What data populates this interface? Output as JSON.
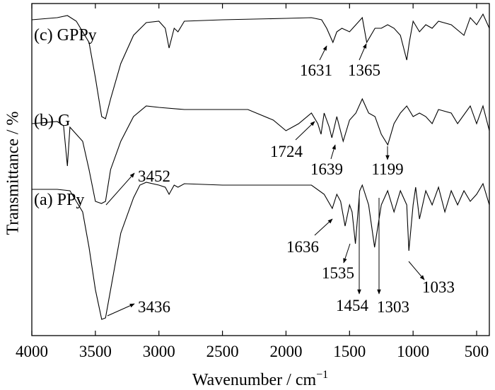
{
  "chart_data": {
    "type": "line",
    "x_label": "Wavenumber / cm",
    "x_label_sup": "−1",
    "y_label": "Transmittance / %",
    "xlim": [
      4000,
      400
    ],
    "xticks": [
      4000,
      3500,
      3000,
      2500,
      2000,
      1500,
      1000,
      500
    ],
    "ylim": [
      0,
      470
    ],
    "color": "#000000",
    "series": [
      {
        "name": "(c) GPPy",
        "x": [
          4000,
          3800,
          3720,
          3650,
          3550,
          3500,
          3450,
          3420,
          3380,
          3300,
          3200,
          3100,
          3000,
          2950,
          2920,
          2880,
          2850,
          2800,
          2500,
          2000,
          1800,
          1720,
          1680,
          1631,
          1600,
          1560,
          1500,
          1450,
          1400,
          1365,
          1300,
          1250,
          1200,
          1150,
          1100,
          1050,
          1030,
          1000,
          950,
          900,
          850,
          800,
          700,
          600,
          550,
          500,
          450,
          400
        ],
        "values": [
          447,
          450,
          453,
          445,
          415,
          365,
          310,
          307,
          335,
          385,
          425,
          443,
          445,
          435,
          407,
          435,
          430,
          445,
          447,
          449,
          450,
          447,
          435,
          415,
          430,
          435,
          430,
          440,
          450,
          415,
          435,
          435,
          440,
          435,
          425,
          390,
          415,
          445,
          430,
          440,
          435,
          445,
          440,
          425,
          450,
          440,
          455,
          435
        ]
      },
      {
        "name": "(b) G",
        "x": [
          4000,
          3800,
          3750,
          3720,
          3700,
          3650,
          3600,
          3550,
          3500,
          3452,
          3420,
          3380,
          3300,
          3200,
          3100,
          3000,
          2800,
          2500,
          2300,
          2100,
          2000,
          1900,
          1800,
          1750,
          1724,
          1700,
          1660,
          1639,
          1600,
          1550,
          1500,
          1450,
          1400,
          1350,
          1300,
          1250,
          1199,
          1150,
          1100,
          1050,
          1000,
          950,
          900,
          850,
          800,
          700,
          650,
          550,
          500,
          450,
          400
        ],
        "values": [
          300,
          303,
          297,
          240,
          295,
          285,
          275,
          235,
          190,
          187,
          190,
          235,
          275,
          310,
          325,
          323,
          320,
          320,
          320,
          305,
          290,
          300,
          315,
          300,
          285,
          315,
          295,
          280,
          310,
          275,
          305,
          315,
          335,
          315,
          310,
          285,
          270,
          300,
          315,
          325,
          310,
          315,
          310,
          300,
          320,
          315,
          300,
          325,
          300,
          325,
          290
        ]
      },
      {
        "name": "(a) PPy",
        "x": [
          4000,
          3800,
          3700,
          3600,
          3550,
          3500,
          3450,
          3420,
          3380,
          3300,
          3200,
          3150,
          3100,
          3000,
          2950,
          2920,
          2880,
          2850,
          2800,
          2500,
          2000,
          1800,
          1700,
          1636,
          1600,
          1570,
          1535,
          1500,
          1480,
          1454,
          1420,
          1400,
          1350,
          1303,
          1250,
          1200,
          1150,
          1100,
          1050,
          1033,
          1000,
          980,
          950,
          900,
          850,
          800,
          750,
          700,
          650,
          600,
          550,
          500,
          450,
          400
        ],
        "values": [
          207,
          207,
          205,
          175,
          125,
          65,
          23,
          25,
          65,
          145,
          195,
          213,
          217,
          213,
          210,
          200,
          213,
          210,
          215,
          213,
          213,
          213,
          200,
          180,
          200,
          190,
          155,
          185,
          175,
          130,
          205,
          213,
          185,
          125,
          185,
          205,
          175,
          205,
          185,
          120,
          185,
          210,
          165,
          205,
          185,
          210,
          175,
          205,
          185,
          205,
          190,
          200,
          215,
          185
        ]
      }
    ],
    "annotations": [
      {
        "text": "1631"
      },
      {
        "text": "1365"
      },
      {
        "text": "1724"
      },
      {
        "text": "1639"
      },
      {
        "text": "1199"
      },
      {
        "text": "3452"
      },
      {
        "text": "3436"
      },
      {
        "text": "1636"
      },
      {
        "text": "1535"
      },
      {
        "text": "1454"
      },
      {
        "text": "1303"
      },
      {
        "text": "1033"
      }
    ]
  }
}
